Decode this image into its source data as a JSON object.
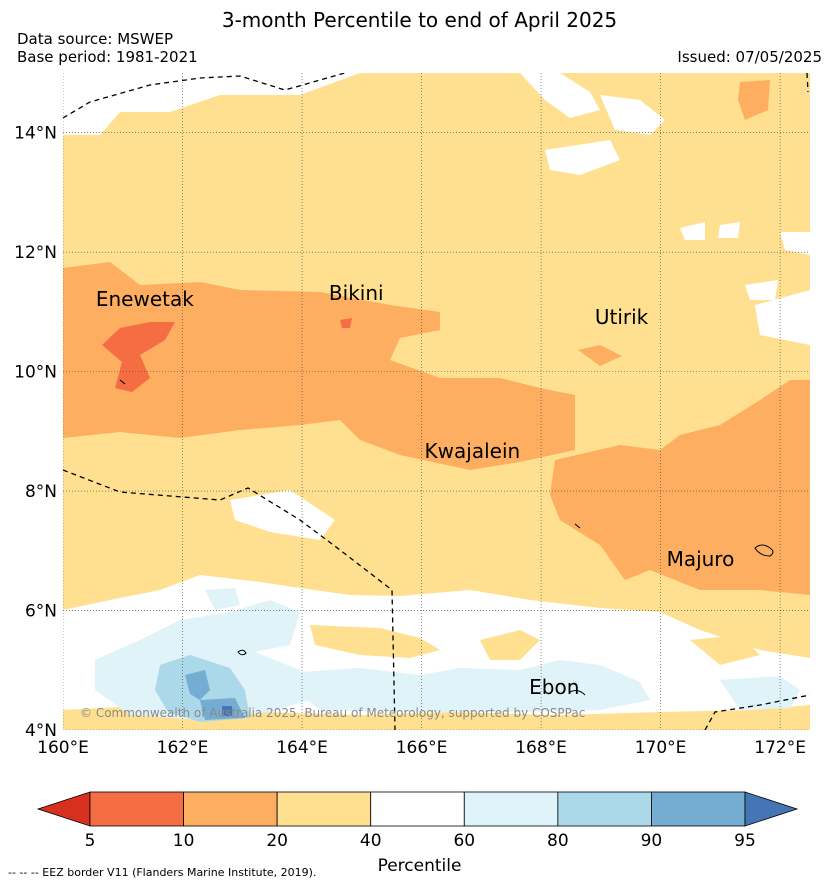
{
  "header": {
    "title": "3-month Percentile to end of April 2025",
    "data_source": "Data source: MSWEP",
    "base_period": "Base period: 1981-2021",
    "issued": "Issued: 07/05/2025"
  },
  "map": {
    "lon_range": [
      160,
      172.5
    ],
    "lat_range": [
      4,
      15
    ],
    "lon_ticks": [
      "160°E",
      "162°E",
      "164°E",
      "166°E",
      "168°E",
      "170°E",
      "172°E"
    ],
    "lat_ticks": [
      "14°N",
      "12°N",
      "10°N",
      "8°N",
      "6°N",
      "4°N"
    ],
    "places": [
      {
        "name": "Enewetak"
      },
      {
        "name": "Bikini"
      },
      {
        "name": "Utirik"
      },
      {
        "name": "Kwajalein"
      },
      {
        "name": "Majuro"
      },
      {
        "name": "Ebon"
      }
    ],
    "copyright": "© Commonwealth of Australia 2025, Bureau of Meteorology, supported by COSPPac"
  },
  "colorbar": {
    "title": "Percentile",
    "boundaries": [
      "5",
      "10",
      "20",
      "40",
      "60",
      "80",
      "90",
      "95"
    ],
    "colors": [
      "#d7301f",
      "#f46d43",
      "#fdae61",
      "#fee090",
      "#ffffff",
      "#e0f3f8",
      "#abd9e9",
      "#74add1",
      "#4575b4"
    ]
  },
  "footer": {
    "eez_note": "-- -- -- EEZ border V11 (Flanders Marine Institute, 2019)."
  }
}
